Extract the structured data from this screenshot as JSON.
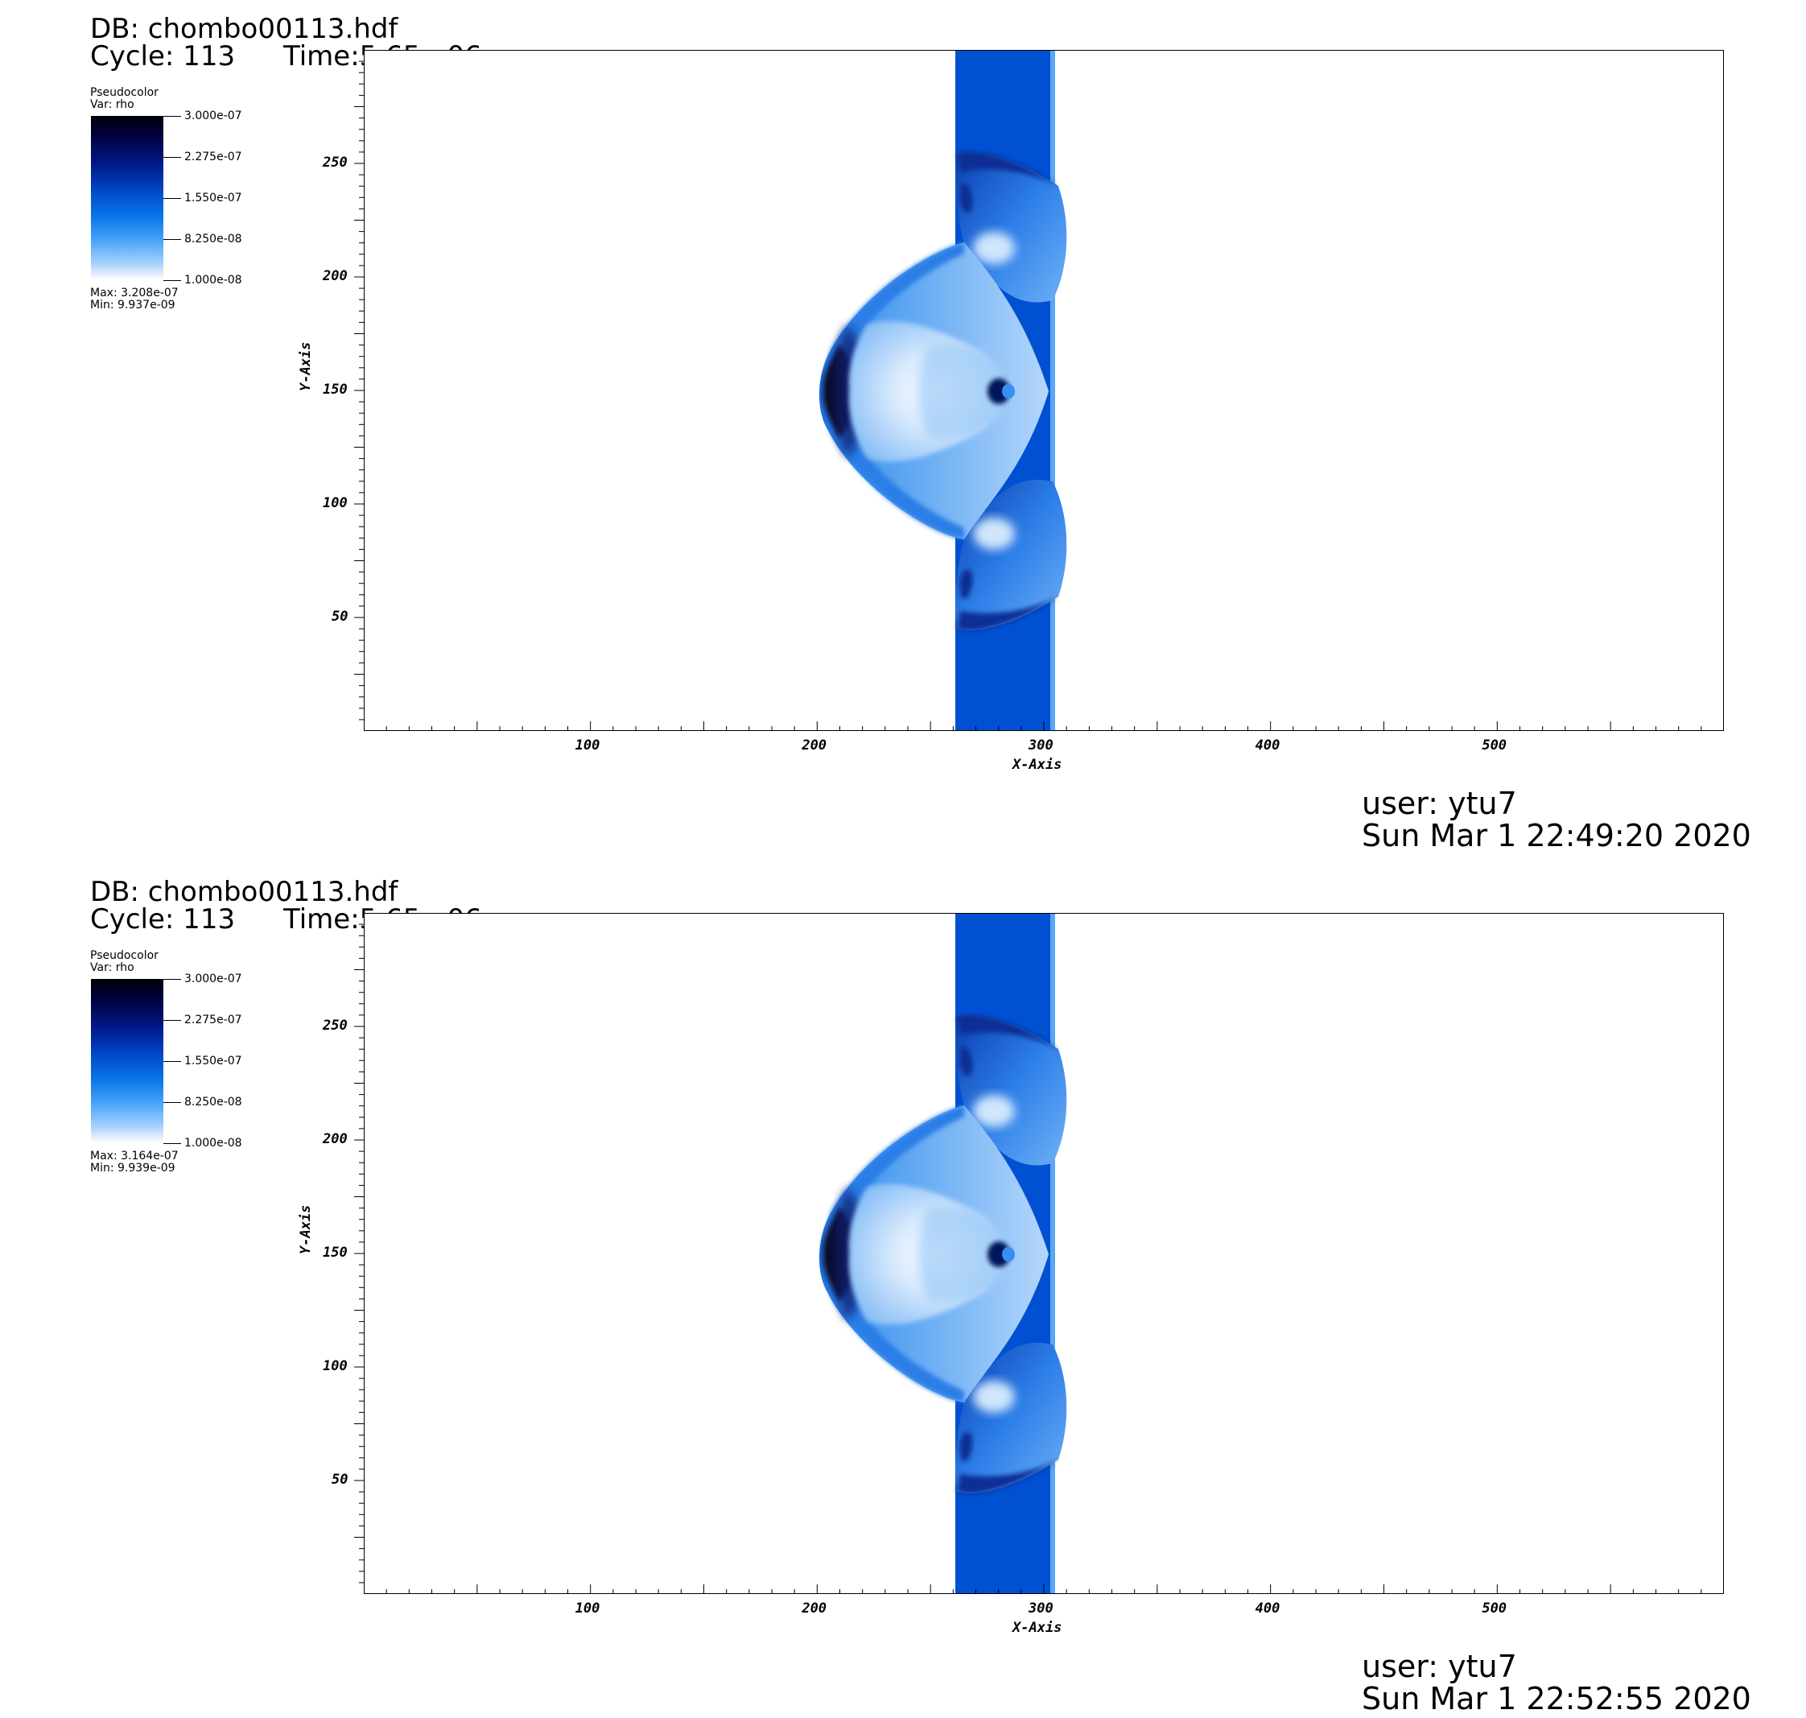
{
  "chart_data": [
    {
      "type": "heatmap",
      "header": {
        "db": "DB: chombo00113.hdf",
        "cycle": "Cycle: 113",
        "time": "Time:5.65e-06"
      },
      "legend": {
        "plot_type": "Pseudocolor",
        "var": "Var: rho",
        "ticks": [
          "3.000e-07",
          "2.275e-07",
          "1.550e-07",
          "8.250e-08",
          "1.000e-08"
        ],
        "range": [
          1e-08,
          3e-07
        ],
        "max": "Max:  3.208e-07",
        "min": "Min:  9.937e-09"
      },
      "xlabel": "X-Axis",
      "ylabel": "Y-Axis",
      "xlim": [
        0,
        600
      ],
      "ylim": [
        0,
        300
      ],
      "xticks": [
        100,
        200,
        300,
        400,
        500
      ],
      "yticks": [
        50,
        100,
        150,
        200,
        250
      ],
      "footer": {
        "user": "user: ytu7",
        "date": "Sun Mar  1 22:49:20 2020"
      }
    },
    {
      "type": "heatmap",
      "header": {
        "db": "DB: chombo00113.hdf",
        "cycle": "Cycle: 113",
        "time": "Time:5.65e-06"
      },
      "legend": {
        "plot_type": "Pseudocolor",
        "var": "Var: rho",
        "ticks": [
          "3.000e-07",
          "2.275e-07",
          "1.550e-07",
          "8.250e-08",
          "1.000e-08"
        ],
        "range": [
          1e-08,
          3e-07
        ],
        "max": "Max:  3.164e-07",
        "min": "Min:  9.939e-09"
      },
      "xlabel": "X-Axis",
      "ylabel": "Y-Axis",
      "xlim": [
        0,
        600
      ],
      "ylim": [
        0,
        300
      ],
      "xticks": [
        100,
        200,
        300,
        400,
        500
      ],
      "yticks": [
        50,
        100,
        150,
        200,
        250
      ],
      "footer": {
        "user": "user: ytu7",
        "date": "Sun Mar  1 22:52:55 2020"
      }
    }
  ],
  "colors": {
    "slab": "#0050d2",
    "shell_dark": "#0030a0",
    "shell_light": "#cfe4fc",
    "deep": "#00002a"
  }
}
